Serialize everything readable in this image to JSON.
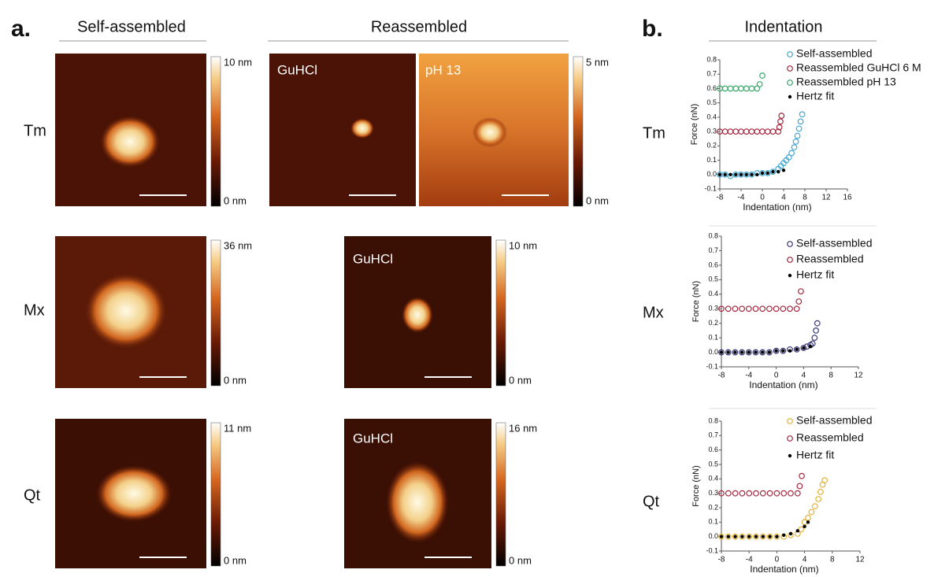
{
  "panel_a": {
    "label": "a.",
    "headers": [
      "Self-assembled",
      "Reassembled"
    ],
    "row_labels": [
      "Tm",
      "Mx",
      "Qt"
    ],
    "image_labels": [
      "GuHCl",
      "pH 13",
      "GuHCl",
      "GuHCl"
    ],
    "colorbars": [
      {
        "max": "10 nm",
        "min": "0 nm"
      },
      {
        "max": "5 nm",
        "min": "0 nm"
      },
      {
        "max": "36 nm",
        "min": "0 nm"
      },
      {
        "max": "10 nm",
        "min": "0 nm"
      },
      {
        "max": "11 nm",
        "min": "0 nm"
      },
      {
        "max": "16 nm",
        "min": "0 nm"
      }
    ]
  },
  "panel_b": {
    "label": "b.",
    "header": "Indentation",
    "row_labels": [
      "Tm",
      "Mx",
      "Qt"
    ]
  },
  "chart_data": [
    {
      "type": "scatter",
      "xlabel": "Indentation (nm)",
      "ylabel": "Force (nN)",
      "xlim": [
        -8,
        16
      ],
      "ylim": [
        -0.1,
        0.8
      ],
      "xticks": [
        -8,
        -4,
        0,
        4,
        8,
        12,
        16
      ],
      "yticks": [
        -0.1,
        {
          "value": 0,
          "label": "0.0"
        },
        0.1,
        0.2,
        0.3,
        0.4,
        0.5,
        0.6,
        0.7,
        0.8
      ],
      "series": [
        {
          "name": "Self-assembled",
          "color": "#45a7d4",
          "marker": "circle",
          "x": [
            -8,
            -7,
            -6,
            -5,
            -4,
            -3,
            -2,
            -1,
            0,
            1,
            2,
            3,
            3.5,
            4,
            4.5,
            5,
            5.5,
            6,
            6.3,
            6.6,
            6.9,
            7.2,
            7.5
          ],
          "values": [
            0,
            0,
            -0.01,
            0,
            0,
            0,
            0,
            0.01,
            0.01,
            0.01,
            0.02,
            0.04,
            0.06,
            0.08,
            0.1,
            0.12,
            0.15,
            0.19,
            0.23,
            0.27,
            0.32,
            0.37,
            0.42
          ]
        },
        {
          "name": "Reassembled GuHCl 6 M",
          "color": "#a3283f",
          "marker": "circle",
          "x": [
            -8,
            -7,
            -6,
            -5,
            -4,
            -3,
            -2,
            -1,
            0,
            1,
            2,
            3,
            3.2,
            3.4,
            3.6
          ],
          "values": [
            0.3,
            0.3,
            0.3,
            0.3,
            0.3,
            0.3,
            0.3,
            0.3,
            0.3,
            0.3,
            0.3,
            0.3,
            0.33,
            0.37,
            0.41
          ]
        },
        {
          "name": "Reassembled pH 13",
          "color": "#3aa86a",
          "marker": "circle",
          "x": [
            -8,
            -7,
            -6,
            -5,
            -4,
            -3,
            -2,
            -1,
            -0.5,
            0
          ],
          "values": [
            0.6,
            0.6,
            0.6,
            0.6,
            0.6,
            0.6,
            0.6,
            0.6,
            0.63,
            0.69
          ]
        },
        {
          "name": "Hertz fit",
          "color": "#000000",
          "marker": "dot",
          "x": [
            -8,
            -7,
            -6,
            -5,
            -4,
            -3,
            -2,
            -1,
            0,
            1,
            2,
            3,
            4
          ],
          "values": [
            0,
            0,
            0,
            0,
            0,
            0,
            0,
            0,
            0.01,
            0.01,
            0.02,
            0.02,
            0.03
          ]
        }
      ]
    },
    {
      "type": "scatter",
      "xlabel": "Indentation (nm)",
      "ylabel": "Force (nN)",
      "xlim": [
        -8,
        12
      ],
      "ylim": [
        -0.1,
        0.8
      ],
      "xticks": [
        -8,
        -4,
        0,
        4,
        8,
        12
      ],
      "yticks": [
        -0.1,
        {
          "value": 0,
          "label": "0.0"
        },
        0.1,
        0.2,
        0.3,
        0.4,
        0.5,
        0.6,
        0.7,
        0.8
      ],
      "series": [
        {
          "name": "Self-assembled",
          "color": "#3b3878",
          "marker": "circle",
          "x": [
            -8,
            -7,
            -6,
            -5,
            -4,
            -3,
            -2,
            -1,
            0,
            1,
            2,
            3,
            4,
            4.5,
            5,
            5.3,
            5.6,
            5.8,
            6
          ],
          "values": [
            0,
            0,
            0,
            0,
            0,
            0,
            0,
            0,
            0.01,
            0.01,
            0.02,
            0.02,
            0.03,
            0.04,
            0.05,
            0.06,
            0.1,
            0.15,
            0.2
          ]
        },
        {
          "name": "Reassembled",
          "color": "#a3283f",
          "marker": "circle",
          "x": [
            -8,
            -7,
            -6,
            -5,
            -4,
            -3,
            -2,
            -1,
            0,
            1,
            2,
            3,
            3.3,
            3.6
          ],
          "values": [
            0.3,
            0.3,
            0.3,
            0.3,
            0.3,
            0.3,
            0.3,
            0.3,
            0.3,
            0.3,
            0.3,
            0.3,
            0.35,
            0.42
          ]
        },
        {
          "name": "Hertz fit",
          "color": "#000000",
          "marker": "dot",
          "x": [
            -8,
            -7,
            -6,
            -5,
            -4,
            -3,
            -2,
            -1,
            0,
            1,
            2,
            3,
            4,
            5
          ],
          "values": [
            0,
            0,
            0,
            0,
            0,
            0,
            0,
            0,
            0.01,
            0.01,
            0.01,
            0.02,
            0.03,
            0.04
          ]
        }
      ]
    },
    {
      "type": "scatter",
      "xlabel": "Indentation (nm)",
      "ylabel": "Force (nN)",
      "xlim": [
        -8,
        12
      ],
      "ylim": [
        -0.1,
        0.8
      ],
      "xticks": [
        -8,
        -4,
        0,
        4,
        8,
        12
      ],
      "yticks": [
        -0.1,
        {
          "value": 0,
          "label": "0.0"
        },
        0.1,
        0.2,
        0.3,
        0.4,
        0.5,
        0.6,
        0.7,
        0.8
      ],
      "series": [
        {
          "name": "Self-assembled",
          "color": "#e3b23a",
          "marker": "circle",
          "x": [
            -8,
            -7,
            -6,
            -5,
            -4,
            -3,
            -2,
            -1,
            0,
            1,
            2,
            3,
            3.5,
            4,
            4.5,
            5,
            5.5,
            6,
            6.3,
            6.6,
            6.9
          ],
          "values": [
            0,
            0,
            0,
            0,
            0,
            0,
            0,
            0,
            0,
            0,
            0.01,
            0.02,
            0.05,
            0.1,
            0.13,
            0.17,
            0.21,
            0.26,
            0.31,
            0.36,
            0.39
          ]
        },
        {
          "name": "Reassembled",
          "color": "#a3283f",
          "marker": "circle",
          "x": [
            -8,
            -7,
            -6,
            -5,
            -4,
            -3,
            -2,
            -1,
            0,
            1,
            2,
            3,
            3.3,
            3.6
          ],
          "values": [
            0.3,
            0.3,
            0.3,
            0.3,
            0.3,
            0.3,
            0.3,
            0.3,
            0.3,
            0.3,
            0.3,
            0.3,
            0.35,
            0.42
          ]
        },
        {
          "name": "Hertz fit",
          "color": "#000000",
          "marker": "dot",
          "x": [
            -8,
            -7,
            -6,
            -5,
            -4,
            -3,
            -2,
            -1,
            0,
            1,
            2,
            3,
            4,
            4.5
          ],
          "values": [
            0,
            0,
            0,
            0,
            0,
            0,
            0,
            0,
            0,
            0.01,
            0.02,
            0.04,
            0.07,
            0.1
          ]
        }
      ]
    }
  ]
}
